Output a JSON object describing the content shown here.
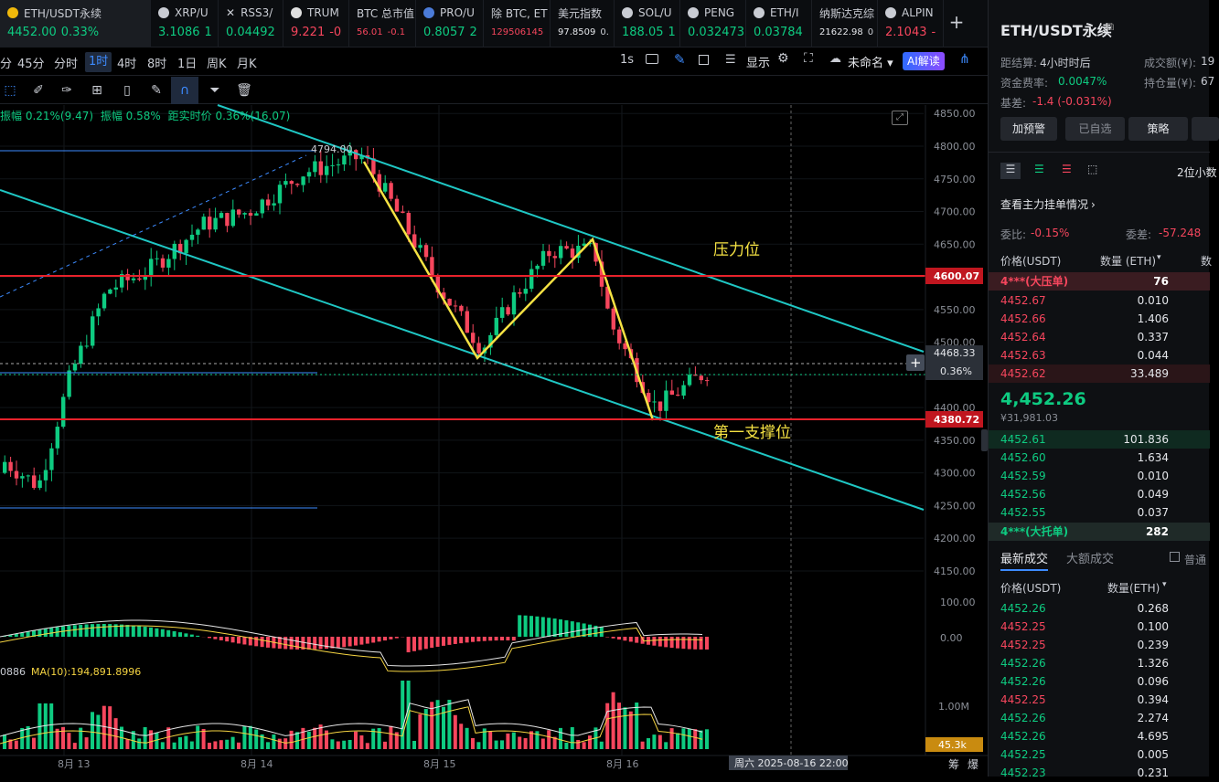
{
  "tabs": [
    {
      "name": "ETH/USDT永续",
      "price": "4452.00",
      "chg": "0.33%",
      "dir": "up",
      "color": "#f0b90b",
      "active": true
    },
    {
      "name": "XRP/U",
      "price": "3.1086",
      "chg": "1",
      "dir": "up",
      "color": "#c9ccd3"
    },
    {
      "name": "RSS3/",
      "price": "0.04492",
      "chg": "",
      "dir": "up",
      "color": "#c9ccd3",
      "x_icon": true
    },
    {
      "name": "TRUM",
      "price": "9.221",
      "chg": "-0",
      "dir": "dn",
      "color": "#e0e0e0"
    },
    {
      "name": "BTC 总市值",
      "price": "56.01",
      "chg": "-0.1",
      "dir": "dn",
      "color": "",
      "small": true
    },
    {
      "name": "PRO/U",
      "price": "0.8057",
      "chg": "2",
      "dir": "up",
      "color": "#4b7bd8"
    },
    {
      "name": "除 BTC, ET",
      "price": "129506145",
      "chg": "",
      "dir": "dn",
      "color": "",
      "small": true
    },
    {
      "name": "美元指数",
      "price": "97.8509",
      "chg": "0.",
      "dir": "neutral",
      "color": "",
      "small": true
    },
    {
      "name": "SOL/U",
      "price": "188.05",
      "chg": "1",
      "dir": "up",
      "color": "#c9ccd3"
    },
    {
      "name": "PENG",
      "price": "0.032473",
      "chg": "",
      "dir": "up",
      "color": "#c9ccd3"
    },
    {
      "name": "ETH/I",
      "price": "0.03784",
      "chg": "",
      "dir": "up",
      "color": "#c9ccd3"
    },
    {
      "name": "纳斯达克综",
      "price": "21622.98",
      "chg": "0",
      "dir": "neutral",
      "color": "",
      "small": true
    },
    {
      "name": "ALPIN",
      "price": "2.1043",
      "chg": "-",
      "dir": "dn",
      "color": "#c9ccd3"
    }
  ],
  "add_tab": "+",
  "timeframes": [
    "分",
    "45分",
    "分时",
    "1时",
    "4时",
    "8时",
    "1日",
    "周K",
    "月K"
  ],
  "toolbar_right": {
    "interval": "1s",
    "display": "显示",
    "template": "未命名",
    "ai": "AI解读"
  },
  "info_line": {
    "a": "振幅 0.21%(9.47)",
    "b": "振幅 0.58%",
    "c": "距实时价 0.36%(16.07)"
  },
  "chart": {
    "peak_label": "4794.00",
    "resistance_label": "压力位",
    "support_label": "第一支撑位",
    "tag_resistance": "4600.07",
    "tag_support": "4380.72",
    "tag_current": "4468.33",
    "tag_pct": "0.36%",
    "price_ticks": [
      "4850.00",
      "4800.00",
      "4750.00",
      "4700.00",
      "4650.00",
      "4600.00",
      "4550.00",
      "4500.00",
      "4450.00",
      "4400.00",
      "4350.00",
      "4300.00",
      "4250.00",
      "4200.00",
      "4150.00"
    ],
    "macd_ticks": [
      "100.00",
      "0.00"
    ],
    "vol_label_a": "0886",
    "vol_label_b": "MA(10):194,891.8996",
    "vol_tick": "1.00M",
    "vol_tag": "45.3k",
    "date_labels": [
      "8月 13",
      "8月 14",
      "8月 15",
      "8月 16"
    ],
    "crosshair_date": "周六 2025-08-16 22:00",
    "corner_a": "筹",
    "corner_b": "爆"
  },
  "right": {
    "title": "ETH/USDT永续",
    "settle_label": "距结算:",
    "settle_val": "4小时时后",
    "vol_label": "成交额(¥):",
    "vol_val": "19",
    "fund_label": "资金费率:",
    "fund_val": "0.0047%",
    "oi_label": "持仓量(¥):",
    "oi_val": "67",
    "basis_label": "基差:",
    "basis_val": "-1.4 (-0.031%)",
    "buttons": [
      "加预警",
      "已自选",
      "策略",
      ""
    ],
    "depth_mode": "2位小数",
    "view_main": "查看主力挂单情况",
    "weibi_label": "委比:",
    "weibi_val": "-0.15%",
    "weicha_label": "委差:",
    "weicha_val": "-57.248",
    "col_price": "价格(USDT)",
    "col_qty": "数量 (ETH)",
    "col_more": "数",
    "big_ask": {
      "p": "4***(大压单)",
      "q": "76"
    },
    "asks": [
      {
        "p": "4452.67",
        "q": "0.010"
      },
      {
        "p": "4452.66",
        "q": "1.406"
      },
      {
        "p": "4452.64",
        "q": "0.337"
      },
      {
        "p": "4452.63",
        "q": "0.044"
      },
      {
        "p": "4452.62",
        "q": "33.489"
      }
    ],
    "last_price": "4,452.26",
    "last_cny": "¥31,981.03",
    "bids": [
      {
        "p": "4452.61",
        "q": "101.836"
      },
      {
        "p": "4452.60",
        "q": "1.634"
      },
      {
        "p": "4452.59",
        "q": "0.010"
      },
      {
        "p": "4452.56",
        "q": "0.049"
      },
      {
        "p": "4452.55",
        "q": "0.037"
      }
    ],
    "big_bid": {
      "p": "4***(大托单)",
      "q": "282"
    },
    "trades_tab1": "最新成交",
    "trades_tab2": "大额成交",
    "trades_normal": "普通",
    "trades_col_price": "价格(USDT)",
    "trades_col_qty": "数量(ETH)",
    "trades": [
      {
        "p": "4452.26",
        "q": "0.268",
        "dir": "up"
      },
      {
        "p": "4452.25",
        "q": "0.100",
        "dir": "dn"
      },
      {
        "p": "4452.25",
        "q": "0.239",
        "dir": "dn"
      },
      {
        "p": "4452.26",
        "q": "1.326",
        "dir": "up"
      },
      {
        "p": "4452.26",
        "q": "0.096",
        "dir": "up"
      },
      {
        "p": "4452.25",
        "q": "0.394",
        "dir": "dn"
      },
      {
        "p": "4452.26",
        "q": "2.274",
        "dir": "up"
      },
      {
        "p": "4452.26",
        "q": "4.695",
        "dir": "up"
      },
      {
        "p": "4452.25",
        "q": "0.005",
        "dir": "up"
      },
      {
        "p": "4452.23",
        "q": "0.231",
        "dir": "up"
      }
    ]
  },
  "colors": {
    "up": "#0ecb81",
    "down": "#f6465d",
    "channel": "#1fc7c4",
    "zigzag": "#f5e243",
    "level": "#e8222b",
    "accent": "#3d8bff"
  }
}
